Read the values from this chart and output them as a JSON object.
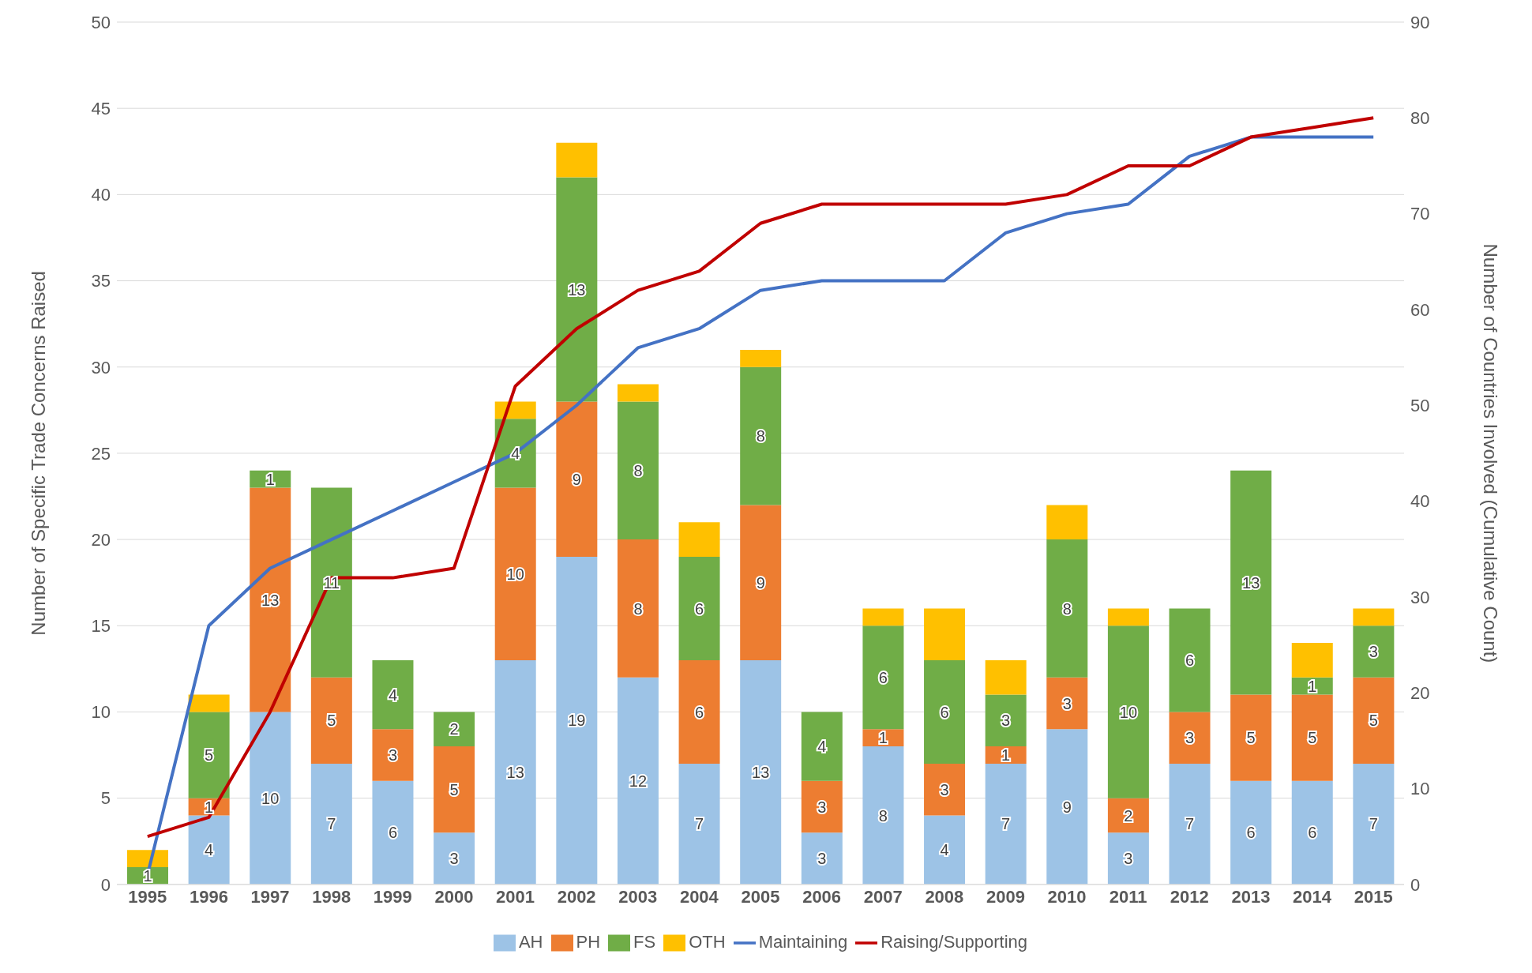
{
  "chart_data": {
    "type": "bar",
    "stacked": true,
    "ylabel": "Number of Specific Trade Concerns Raised",
    "y2label": "Number of Countries Involved (Cumulative Count)",
    "categories": [
      "1995",
      "1996",
      "1997",
      "1998",
      "1999",
      "2000",
      "2001",
      "2002",
      "2003",
      "2004",
      "2005",
      "2006",
      "2007",
      "2008",
      "2009",
      "2010",
      "2011",
      "2012",
      "2013",
      "2014",
      "2015"
    ],
    "series": [
      {
        "name": "AH",
        "color": "#9dc3e6",
        "values": [
          0,
          4,
          10,
          7,
          6,
          3,
          13,
          19,
          12,
          7,
          13,
          3,
          8,
          4,
          7,
          9,
          3,
          7,
          6,
          6,
          7
        ],
        "value_labels": [
          null,
          "4",
          "10",
          "7",
          "6",
          "3",
          "13",
          "19",
          "12",
          "7",
          "13",
          "3",
          "8",
          "4",
          "7",
          "9",
          "3",
          "7",
          "6",
          "6",
          "7"
        ]
      },
      {
        "name": "PH",
        "color": "#ed7d31",
        "values": [
          0,
          1,
          13,
          5,
          3,
          5,
          10,
          9,
          8,
          6,
          9,
          3,
          1,
          3,
          1,
          3,
          2,
          3,
          5,
          5,
          5
        ],
        "value_labels": [
          null,
          "1",
          "13",
          "5",
          "3",
          "5",
          "10",
          "9",
          "8",
          "6",
          "9",
          "3",
          "1",
          "3",
          "1",
          "3",
          "2",
          "3",
          "5",
          "5",
          "5"
        ]
      },
      {
        "name": "FS",
        "color": "#70ad47",
        "values": [
          1,
          5,
          1,
          11,
          4,
          2,
          4,
          13,
          8,
          6,
          8,
          4,
          6,
          6,
          3,
          8,
          10,
          6,
          13,
          1,
          3
        ],
        "value_labels": [
          "1",
          "5",
          "1",
          "11",
          "4",
          "2",
          "4",
          "13",
          "8",
          "6",
          "8",
          "4",
          "6",
          "6",
          "3",
          "8",
          "10",
          "6",
          "13",
          "1",
          "3"
        ]
      },
      {
        "name": "OTH",
        "color": "#ffc000",
        "values": [
          1,
          1,
          0,
          0,
          0,
          0,
          1,
          2,
          1,
          2,
          1,
          0,
          1,
          3,
          2,
          2,
          1,
          0,
          0,
          2,
          1
        ]
      },
      {
        "name": "Maintaining",
        "type": "line",
        "axis": "y2",
        "color": "#4472c4",
        "values": [
          1,
          27,
          33,
          36,
          39,
          42,
          45,
          50,
          56,
          58,
          62,
          63,
          63,
          63,
          68,
          70,
          71,
          76,
          78,
          78,
          78
        ]
      },
      {
        "name": "Raising/Supporting",
        "type": "line",
        "axis": "y2",
        "color": "#c00000",
        "values": [
          5,
          7,
          18,
          32,
          32,
          33,
          52,
          58,
          62,
          64,
          69,
          71,
          71,
          71,
          71,
          72,
          75,
          75,
          78,
          79,
          80
        ]
      }
    ],
    "ylim": [
      0,
      50
    ],
    "yticks": [
      0,
      5,
      10,
      15,
      20,
      25,
      30,
      35,
      40,
      45,
      50
    ],
    "y2lim": [
      0,
      90
    ],
    "y2ticks": [
      0,
      10,
      20,
      30,
      40,
      50,
      60,
      70,
      80,
      90
    ],
    "grid": "y",
    "legend": "bottom",
    "marker": "none",
    "line_style": "solid"
  }
}
